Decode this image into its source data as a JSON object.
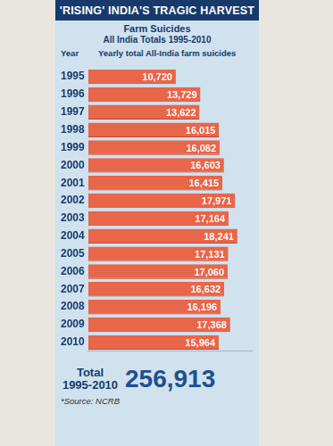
{
  "chart_data": {
    "type": "bar",
    "title": "'RISING' INDIA'S TRAGIC HARVEST",
    "subtitle": "Farm Suicides",
    "subtitle2": "All India Totals 1995-2010",
    "category_header": "Year",
    "value_header": "Yearly total All-India farm suicides",
    "categories": [
      "1995",
      "1996",
      "1997",
      "1998",
      "1999",
      "2000",
      "2001",
      "2002",
      "2003",
      "2004",
      "2005",
      "2006",
      "2007",
      "2008",
      "2009",
      "2010"
    ],
    "values": [
      10720,
      13729,
      13622,
      16015,
      16082,
      16603,
      16415,
      17971,
      17164,
      18241,
      17131,
      17060,
      16632,
      16196,
      17368,
      15964
    ],
    "value_labels": [
      "10,720",
      "13,729",
      "13,622",
      "16,015",
      "16,082",
      "16,603",
      "16,415",
      "17,971",
      "17,164",
      "18,241",
      "17,131",
      "17,060",
      "16,632",
      "16,196",
      "17,368",
      "15,964"
    ],
    "color": "#e8664a",
    "orientation": "horizontal",
    "data_labels": true,
    "tick_labels": "y",
    "grid": false,
    "xlim": [
      0,
      20000
    ],
    "xticks": [],
    "total": {
      "label": "Total",
      "period": "1995-2010",
      "value": 256913,
      "value_label": "256,913"
    },
    "source": "*Source: NCRB"
  }
}
